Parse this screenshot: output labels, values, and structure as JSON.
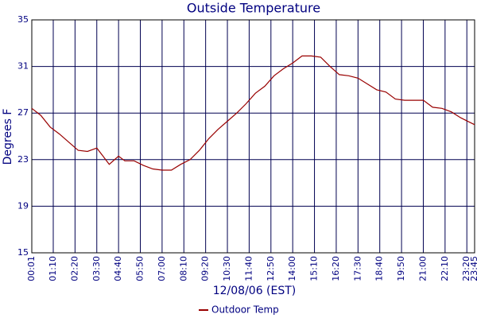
{
  "chart_data": {
    "type": "line",
    "title": "Outside Temperature",
    "x_label": "12/08/06 (EST)",
    "y_label": "Degrees F",
    "x": [
      "00:01",
      "00:30",
      "01:00",
      "01:30",
      "02:00",
      "02:30",
      "03:00",
      "03:30",
      "04:10",
      "04:40",
      "05:00",
      "05:30",
      "06:00",
      "06:30",
      "07:00",
      "07:30",
      "08:00",
      "08:30",
      "09:00",
      "09:30",
      "10:00",
      "10:30",
      "11:00",
      "11:30",
      "12:00",
      "12:30",
      "13:00",
      "13:30",
      "14:00",
      "14:30",
      "15:00",
      "15:30",
      "16:00",
      "16:30",
      "17:00",
      "17:30",
      "18:00",
      "18:30",
      "19:00",
      "19:30",
      "20:00",
      "20:30",
      "21:00",
      "21:30",
      "22:00",
      "22:30",
      "23:00",
      "23:30",
      "23:45"
    ],
    "series": [
      {
        "name": "Outdoor Temp",
        "color": "#990000",
        "values": [
          27.4,
          26.8,
          25.8,
          25.2,
          24.5,
          23.8,
          23.7,
          24.0,
          22.6,
          23.3,
          22.9,
          22.9,
          22.5,
          22.2,
          22.1,
          22.1,
          22.6,
          23.0,
          23.8,
          24.8,
          25.6,
          26.3,
          27.0,
          27.8,
          28.7,
          29.3,
          30.2,
          30.8,
          31.3,
          31.9,
          31.9,
          31.8,
          31.0,
          30.3,
          30.2,
          30.0,
          29.5,
          29.0,
          28.8,
          28.2,
          28.1,
          28.1,
          28.1,
          27.5,
          27.4,
          27.1,
          26.6,
          26.2,
          26.0
        ]
      }
    ],
    "xlim": [
      "00:01",
      "23:45"
    ],
    "xticks": [
      "00:01",
      "01:10",
      "02:20",
      "03:30",
      "04:40",
      "05:50",
      "07:00",
      "08:10",
      "09:20",
      "10:30",
      "11:40",
      "12:50",
      "14:00",
      "15:10",
      "16:20",
      "17:30",
      "18:40",
      "19:50",
      "21:00",
      "22:10",
      "23:20",
      "23:45"
    ],
    "ylim": [
      15,
      35
    ],
    "yticks": [
      15,
      19,
      23,
      27,
      31,
      35
    ],
    "grid": true,
    "legend": "bottom"
  }
}
